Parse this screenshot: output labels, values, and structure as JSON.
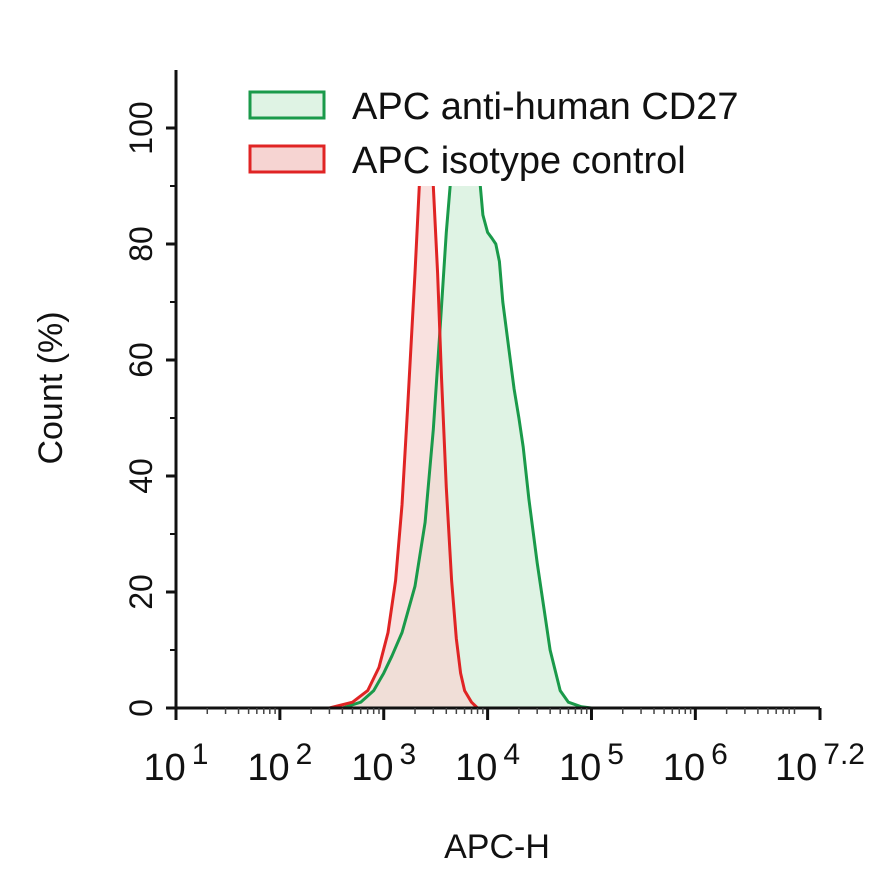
{
  "chart_data": {
    "type": "area",
    "xlabel": "APC-H",
    "ylabel": "Count  (%)",
    "x_scale": "log10",
    "xlim": [
      10,
      15848931.92
    ],
    "ylim": [
      0,
      110
    ],
    "x_ticks": [
      {
        "value": 10,
        "base": "10",
        "exp": "1"
      },
      {
        "value": 100,
        "base": "10",
        "exp": "2"
      },
      {
        "value": 1000,
        "base": "10",
        "exp": "3"
      },
      {
        "value": 10000,
        "base": "10",
        "exp": "4"
      },
      {
        "value": 100000,
        "base": "10",
        "exp": "5"
      },
      {
        "value": 1000000,
        "base": "10",
        "exp": "6"
      },
      {
        "value": 15848931.92,
        "base": "10",
        "exp": "7.2"
      }
    ],
    "y_ticks": [
      "0",
      "20",
      "40",
      "60",
      "80",
      "100"
    ],
    "legend_position": "top-right",
    "series": [
      {
        "name": "APC anti-human CD27",
        "line_color": "#1a9a4a",
        "fill_color": "#dff3e4",
        "x": [
          400,
          600,
          800,
          1000,
          1200,
          1500,
          2000,
          2500,
          3000,
          3500,
          4000,
          4500,
          5000,
          5500,
          6000,
          6500,
          7000,
          7500,
          8000,
          8500,
          9000,
          10000,
          11000,
          12000,
          13000,
          14000,
          16000,
          18000,
          20000,
          22000,
          25000,
          30000,
          35000,
          40000,
          50000,
          60000,
          80000,
          100000
        ],
        "y": [
          0,
          1,
          3,
          6,
          9,
          13,
          21,
          32,
          48,
          66,
          82,
          93,
          98,
          100,
          99,
          96,
          97,
          98,
          95,
          90,
          85,
          82,
          81,
          80,
          77,
          70,
          62,
          55,
          50,
          45,
          36,
          25,
          17,
          10,
          3,
          1,
          0.2,
          0
        ]
      },
      {
        "name": "APC isotype control",
        "line_color": "#e02424",
        "fill_color": "#f6d4d2",
        "x": [
          300,
          500,
          700,
          900,
          1100,
          1300,
          1500,
          1700,
          2000,
          2200,
          2400,
          2600,
          2800,
          3000,
          3300,
          3600,
          4000,
          4500,
          5000,
          5500,
          6000,
          7000,
          8000
        ],
        "y": [
          0,
          1,
          3,
          7,
          13,
          22,
          35,
          52,
          75,
          90,
          97,
          100,
          97,
          90,
          75,
          57,
          38,
          22,
          12,
          6,
          3,
          1,
          0
        ]
      }
    ]
  }
}
